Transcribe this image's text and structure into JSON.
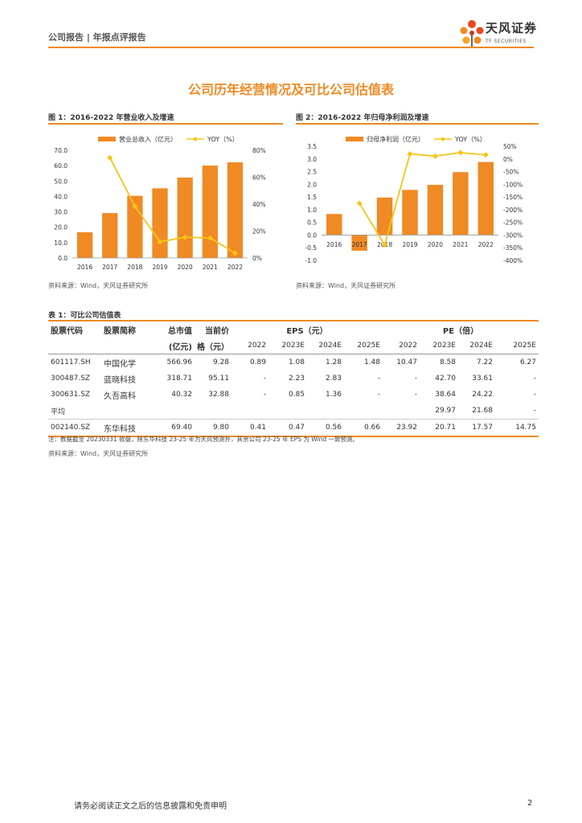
{
  "header": {
    "report_type": "公司报告 | 年报点评报告",
    "logo_cn": "天风证券",
    "logo_en": "TF SECURITIES"
  },
  "section_title": "公司历年经营情况及可比公司估值表",
  "figure1": {
    "title": "图 1：2016-2022 年营业收入及增速",
    "source": "资料来源：Wind，天风证券研究所"
  },
  "figure2": {
    "title": "图 2：2016-2022 年归母净利润及增速",
    "source": "资料来源：Wind，天风证券研究所"
  },
  "chart_data": [
    {
      "type": "bar",
      "title": "图 1：2016-2022 年营业收入及增速",
      "categories": [
        "2016",
        "2017",
        "2018",
        "2019",
        "2020",
        "2021",
        "2022"
      ],
      "series": [
        {
          "name": "营业总收入（亿元）",
          "type": "bar",
          "axis": "left",
          "color": "#f08a24",
          "values": [
            16.7,
            29.2,
            40.4,
            45.3,
            52.3,
            60.1,
            62.2
          ]
        },
        {
          "name": "YOY（%）",
          "type": "line",
          "axis": "right",
          "color": "#f5c518",
          "values": [
            null,
            74.5,
            38.4,
            12.1,
            15.4,
            14.9,
            3.6
          ]
        }
      ],
      "y_left": {
        "lim": [
          0,
          70
        ],
        "ticks": [
          "0.0",
          "10.0",
          "20.0",
          "30.0",
          "40.0",
          "50.0",
          "60.0",
          "70.0"
        ]
      },
      "y_right": {
        "lim": [
          0,
          80
        ],
        "ticks": [
          "0%",
          "20%",
          "40%",
          "60%",
          "80%"
        ]
      },
      "legend": "top",
      "grid": false
    },
    {
      "type": "bar",
      "title": "图 2：2016-2022 年归母净利润及增速",
      "categories": [
        "2016",
        "2017",
        "2018",
        "2019",
        "2020",
        "2021",
        "2022"
      ],
      "series": [
        {
          "name": "归母净利润（亿元）",
          "type": "bar",
          "axis": "left",
          "color": "#f08a24",
          "values": [
            0.83,
            -0.62,
            1.48,
            1.78,
            1.98,
            2.48,
            2.88
          ]
        },
        {
          "name": "YOY（%）",
          "type": "line",
          "axis": "right",
          "color": "#f5c518",
          "values": [
            null,
            -175,
            -339,
            20,
            11,
            25,
            16
          ]
        }
      ],
      "y_left": {
        "lim": [
          -1.0,
          3.5
        ],
        "ticks": [
          "-1.0",
          "-0.5",
          "0.0",
          "0.5",
          "1.0",
          "1.5",
          "2.0",
          "2.5",
          "3.0",
          "3.5"
        ]
      },
      "y_right": {
        "lim": [
          -400,
          50
        ],
        "ticks": [
          "-400%",
          "-350%",
          "-300%",
          "-250%",
          "-200%",
          "-150%",
          "-100%",
          "-50%",
          "0%",
          "50%"
        ]
      },
      "legend": "top",
      "grid": false
    }
  ],
  "table": {
    "title": "表 1：可比公司估值表",
    "headers": {
      "code": "股票代码",
      "name": "股票简称",
      "mcap_1": "总市值",
      "mcap_2": "(亿元)",
      "price_1": "当前价",
      "price_2": "格（元）",
      "eps": "EPS（元）",
      "pe": "PE（倍）",
      "years": [
        "2022",
        "2023E",
        "2024E",
        "2025E",
        "2022",
        "2023E",
        "2024E",
        "2025E"
      ]
    },
    "rows": [
      {
        "cells": [
          "601117.SH",
          "中国化学",
          "566.96",
          "9.28",
          "0.89",
          "1.08",
          "1.28",
          "1.48",
          "10.47",
          "8.58",
          "7.22",
          "6.27"
        ]
      },
      {
        "cells": [
          "300487.SZ",
          "蓝晓科技",
          "318.71",
          "95.11",
          "-",
          "2.23",
          "2.83",
          "-",
          "-",
          "42.70",
          "33.61",
          "-"
        ]
      },
      {
        "cells": [
          "300631.SZ",
          "久吾高科",
          "40.32",
          "32.88",
          "-",
          "0.85",
          "1.36",
          "-",
          "-",
          "38.64",
          "24.22",
          "-"
        ]
      },
      {
        "cells": [
          "平均",
          "",
          "",
          "",
          "",
          "",
          "",
          "",
          "",
          "29.97",
          "21.68",
          "-"
        ]
      },
      {
        "cells": [
          "002140.SZ",
          "东华科技",
          "69.40",
          "9.80",
          "0.41",
          "0.47",
          "0.56",
          "0.66",
          "23.92",
          "20.71",
          "17.57",
          "14.75"
        ]
      }
    ],
    "note": "注：数据截至 20230331 收盘，除东华科技 23-25 年为天风预测外，其余公司 23-25 年 EPS 为 Wind 一致预测。",
    "source": "资料来源：Wind，天风证券研究所"
  },
  "footer": {
    "disclaimer": "请务必阅读正文之后的信息披露和免责申明",
    "page": "2"
  }
}
